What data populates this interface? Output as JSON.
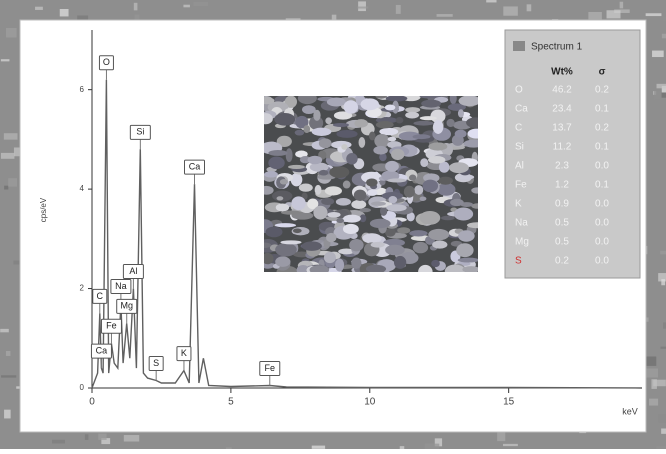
{
  "chart_data": {
    "type": "line",
    "y_label": "cps/eV",
    "x_label": "keV",
    "xlim": [
      0,
      19.8
    ],
    "ylim": [
      0,
      7.2
    ],
    "xticks": [
      0,
      5,
      10,
      15
    ],
    "yticks": [
      0,
      2,
      4,
      6
    ],
    "color": "#606060",
    "x": [
      0,
      0.2,
      0.28,
      0.34,
      0.4,
      0.52,
      0.6,
      0.7,
      0.8,
      0.93,
      1.04,
      1.12,
      1.25,
      1.36,
      1.49,
      1.6,
      1.74,
      1.85,
      2.0,
      2.31,
      2.5,
      3.0,
      3.31,
      3.5,
      3.69,
      3.85,
      4.01,
      4.2,
      5,
      6.4,
      7,
      10,
      15,
      19.8
    ],
    "values": [
      0,
      0.3,
      1.5,
      0.4,
      0.3,
      6.2,
      0.3,
      0.9,
      0.5,
      0.4,
      1.7,
      0.5,
      1.3,
      0.6,
      2.0,
      0.4,
      4.8,
      0.3,
      0.2,
      0.15,
      0.1,
      0.1,
      0.35,
      0.1,
      4.1,
      0.1,
      0.6,
      0.05,
      0.03,
      0.05,
      0.02,
      0.01,
      0.01,
      0
    ],
    "annotations": [
      {
        "text": "C",
        "x": 0.28
      },
      {
        "text": "Ca",
        "x": 0.34
      },
      {
        "text": "O",
        "x": 0.52
      },
      {
        "text": "Fe",
        "x": 0.7
      },
      {
        "text": "Na",
        "x": 1.04
      },
      {
        "text": "Mg",
        "x": 1.25
      },
      {
        "text": "Al",
        "x": 1.49
      },
      {
        "text": "Si",
        "x": 1.74
      },
      {
        "text": "S",
        "x": 2.31
      },
      {
        "text": "K",
        "x": 3.31
      },
      {
        "text": "Ca",
        "x": 3.69
      },
      {
        "text": "Fe",
        "x": 6.4
      }
    ]
  },
  "table": {
    "title": "Spectrum 1",
    "columns": [
      "Wt%",
      "σ"
    ],
    "rows": [
      [
        "O",
        "46.2",
        "0.2"
      ],
      [
        "Ca",
        "23.4",
        "0.1"
      ],
      [
        "C",
        "13.7",
        "0.2"
      ],
      [
        "Si",
        "11.2",
        "0.1"
      ],
      [
        "Al",
        "2.3",
        "0.0"
      ],
      [
        "Fe",
        "1.2",
        "0.1"
      ],
      [
        "K",
        "0.9",
        "0.0"
      ],
      [
        "Na",
        "0.5",
        "0.0"
      ],
      [
        "Mg",
        "0.5",
        "0.0"
      ],
      [
        "S",
        "0.2",
        "0.0"
      ]
    ]
  }
}
